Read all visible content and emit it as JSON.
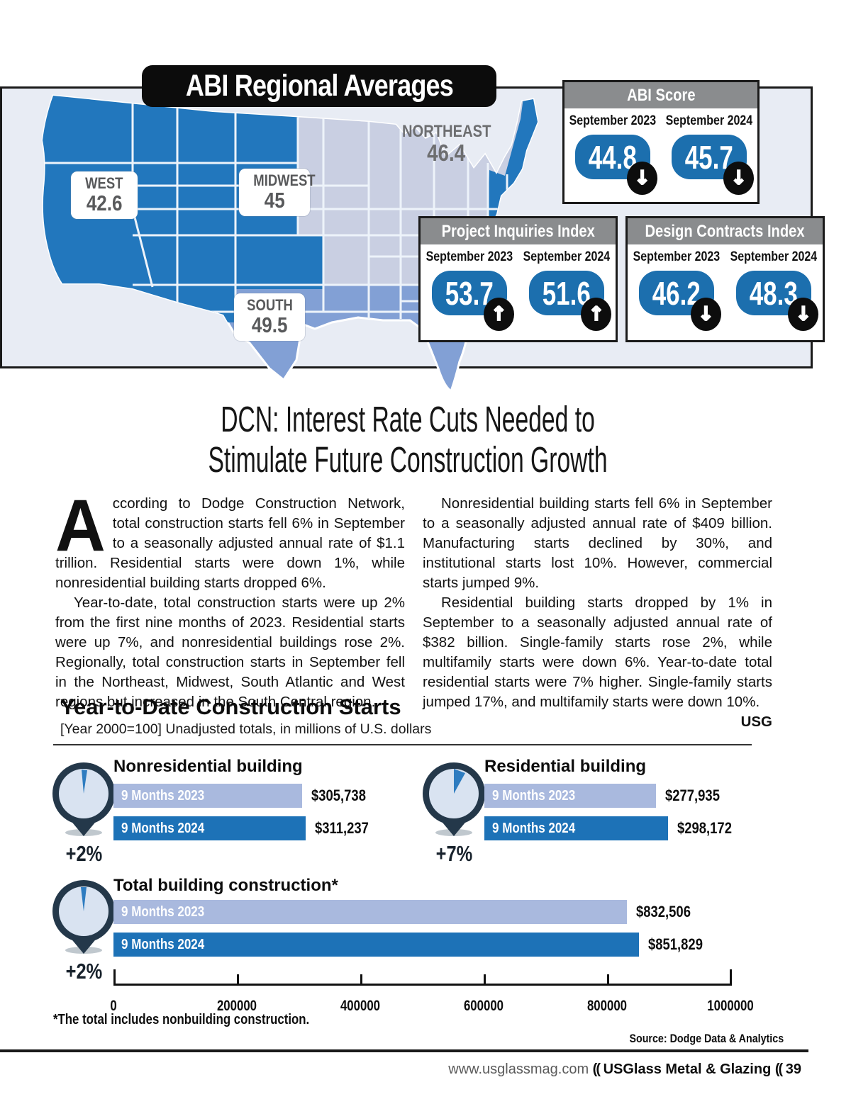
{
  "map": {
    "title": "ABI Regional Averages",
    "regions": [
      {
        "name": "WEST",
        "value": "42.6"
      },
      {
        "name": "MIDWEST",
        "value": "45"
      },
      {
        "name": "SOUTH",
        "value": "49.5"
      },
      {
        "name": "NORTHEAST",
        "value": "46.4"
      }
    ],
    "colors": {
      "west_northeast": "#2277bd",
      "midwest": "#c9cfe2",
      "south": "#82a0d5",
      "background": "#e8ecf4"
    }
  },
  "score_boxes": [
    {
      "title": "ABI Score",
      "entries": [
        {
          "label": "September 2023",
          "value": "44.8",
          "direction": "down"
        },
        {
          "label": "September 2024",
          "value": "45.7",
          "direction": "down"
        }
      ]
    },
    {
      "title": "Project Inquiries Index",
      "entries": [
        {
          "label": "September 2023",
          "value": "53.7",
          "direction": "up"
        },
        {
          "label": "September 2024",
          "value": "51.6",
          "direction": "up"
        }
      ]
    },
    {
      "title": "Design Contracts Index",
      "entries": [
        {
          "label": "September 2023",
          "value": "46.2",
          "direction": "down"
        },
        {
          "label": "September 2024",
          "value": "48.3",
          "direction": "down"
        }
      ]
    }
  ],
  "article": {
    "headline_line1": "DCN: Interest Rate Cuts Needed to",
    "headline_line2": "Stimulate Future Construction Growth",
    "drop_cap": "A",
    "col1_p1": "ccording to Dodge Construction Network, total construction starts fell 6% in September to a seasonally adjusted annual rate of $1.1 trillion. Residential starts were down 1%, while nonresidential building starts dropped 6%.",
    "col1_p2": "Year-to-date, total construction starts were up 2% from the first nine months of 2023. Residential starts were up 7%, and nonresidential buildings rose 2%. Regionally, total construction starts in September fell in the Northeast, Midwest, South Atlantic and West regions but increased in the South Central region.",
    "col2_p1": "Nonresidential building starts fell 6% in September to a seasonally adjusted annual rate of $409 billion. Manufacturing starts declined by 30%, and institutional starts lost 10%. However, commercial starts jumped 9%.",
    "col2_p2": "Residential building starts dropped by 1% in September to a seasonally adjusted annual rate of $382 billion. Single-family starts rose 2%, while multifamily starts were down 6%. Year-to-date total residential starts were 7% higher. Single-family starts jumped 17%, and multifamily starts were down 10%.",
    "end_mark": "USG"
  },
  "chart_data": {
    "type": "bar",
    "title": "Year-to-Date Construction Starts",
    "subtitle": "[Year 2000=100] Unadjusted totals, in millions of U.S. dollars",
    "axis": {
      "min": 0,
      "max": 1000000,
      "ticks": [
        0,
        200000,
        400000,
        600000,
        800000,
        1000000
      ],
      "tick_labels": [
        "0",
        "200000",
        "400000",
        "600000",
        "800000",
        "1000000"
      ]
    },
    "groups": [
      {
        "name": "Nonresidential building",
        "change": "+2%",
        "series": [
          {
            "label": "9 Months 2023",
            "value": 305738,
            "display": "$305,738"
          },
          {
            "label": "9 Months 2024",
            "value": 311237,
            "display": "$311,237"
          }
        ]
      },
      {
        "name": "Residential building",
        "change": "+7%",
        "series": [
          {
            "label": "9 Months 2023",
            "value": 277935,
            "display": "$277,935"
          },
          {
            "label": "9 Months 2024",
            "value": 298172,
            "display": "$298,172"
          }
        ]
      },
      {
        "name": "Total building construction*",
        "change": "+2%",
        "series": [
          {
            "label": "9 Months 2023",
            "value": 832506,
            "display": "$832,506"
          },
          {
            "label": "9 Months 2024",
            "value": 851829,
            "display": "$851,829"
          }
        ]
      }
    ],
    "colors": {
      "bar_2023": "#a9b9de",
      "bar_2024": "#1d72b7"
    },
    "footnote": "*The total includes nonbuilding construction.",
    "source": "Source: Dodge Data & Analytics"
  },
  "footer": {
    "url": "www.usglassmag.com",
    "separator": "((",
    "magazine": "USGlass Metal & Glazing",
    "page": "39"
  }
}
